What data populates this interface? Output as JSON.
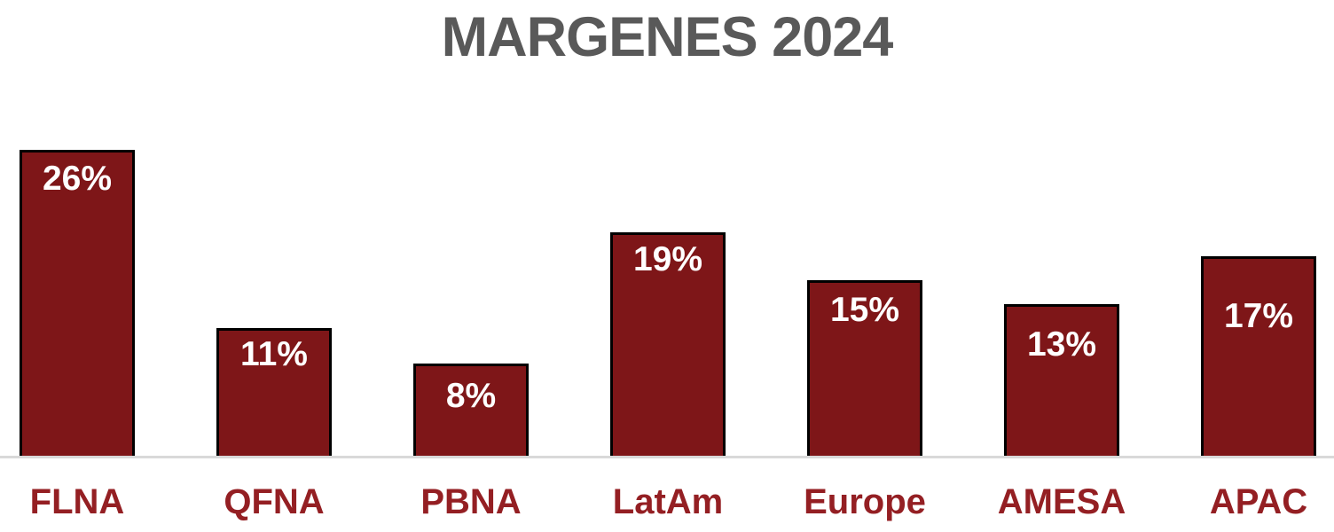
{
  "title": "MARGENES 2024",
  "colors": {
    "background": "#FFFFFF",
    "bar_fill": "#7E1618",
    "bar_border": "#000000",
    "data_label": "#FFFFFF",
    "category_label": "#941F23",
    "title_color": "#595959",
    "axis_line": "#D9D9D9"
  },
  "chart_data": {
    "type": "bar",
    "title": "MARGENES 2024",
    "categories": [
      "FLNA",
      "QFNA",
      "PBNA",
      "LatAm",
      "Europe",
      "AMESA",
      "APAC"
    ],
    "values": [
      26,
      11,
      8,
      19,
      15,
      13,
      17
    ],
    "value_labels": [
      "26%",
      "11%",
      "8%",
      "19%",
      "15%",
      "13%",
      "17%"
    ],
    "unit": "%",
    "xlabel": "",
    "ylabel": "",
    "ylim": [
      0,
      26
    ],
    "grid": false,
    "legend": false,
    "data_label_position": "inside-top",
    "x_axis_line": true,
    "y_axis_visible": false
  }
}
